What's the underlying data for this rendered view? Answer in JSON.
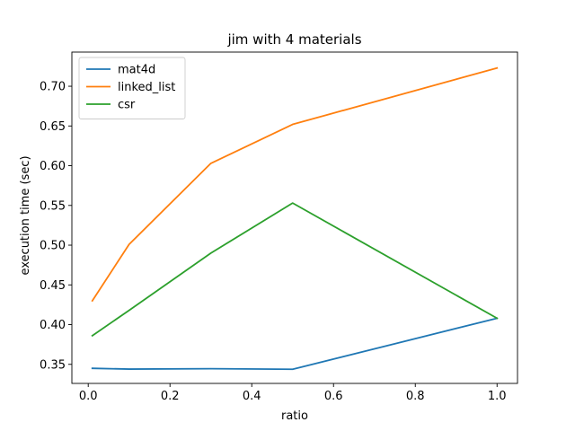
{
  "chart_data": {
    "type": "line",
    "title": "jim with 4 materials",
    "xlabel": "ratio",
    "ylabel": "execution time (sec)",
    "xlim": [
      -0.04,
      1.05
    ],
    "ylim": [
      0.326,
      0.743
    ],
    "xticks": [
      0.0,
      0.2,
      0.4,
      0.6,
      0.8,
      1.0
    ],
    "xtick_labels": [
      "0.0",
      "0.2",
      "0.4",
      "0.6",
      "0.8",
      "1.0"
    ],
    "yticks": [
      0.35,
      0.4,
      0.45,
      0.5,
      0.55,
      0.6,
      0.65,
      0.7
    ],
    "ytick_labels": [
      "0.35",
      "0.40",
      "0.45",
      "0.50",
      "0.55",
      "0.60",
      "0.65",
      "0.70"
    ],
    "grid": false,
    "legend_position": "top-left",
    "x": [
      0.01,
      0.1,
      0.3,
      0.5,
      1.0
    ],
    "series": [
      {
        "name": "mat4d",
        "color": "#1f77b4",
        "values": [
          0.345,
          0.344,
          0.3445,
          0.3438,
          0.408
        ]
      },
      {
        "name": "linked_list",
        "color": "#ff7f0e",
        "values": [
          0.43,
          0.501,
          0.603,
          0.652,
          0.723
        ]
      },
      {
        "name": "csr",
        "color": "#2ca02c",
        "values": [
          0.386,
          0.418,
          0.49,
          0.553,
          0.408
        ]
      }
    ]
  }
}
